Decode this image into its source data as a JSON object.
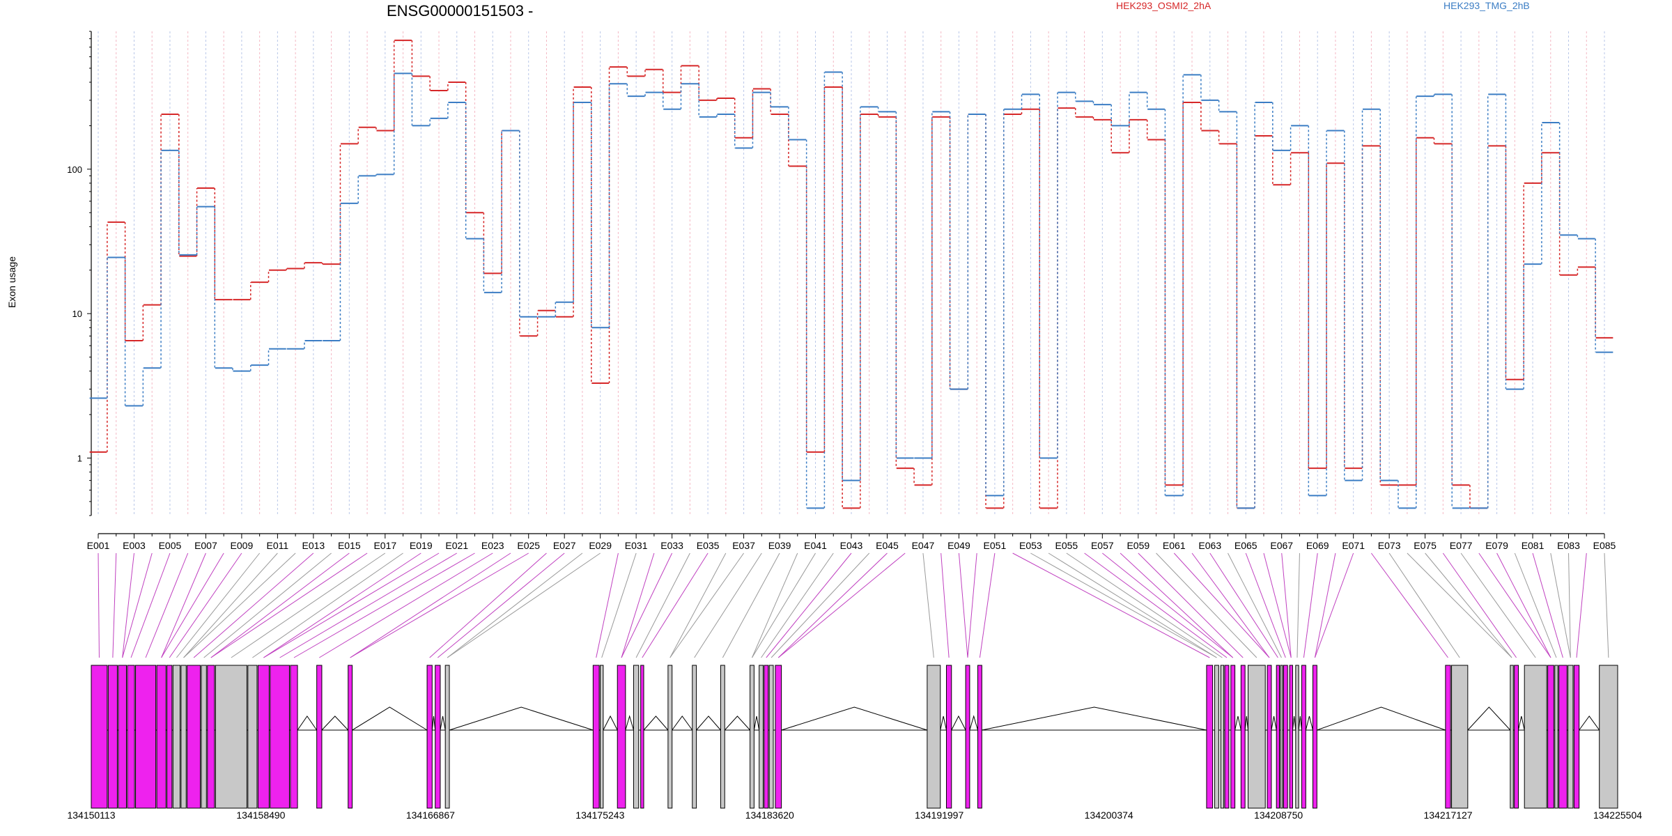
{
  "chart_data": {
    "type": "line",
    "title": "ENSG00000151503 -",
    "ylabel": "Exon usage",
    "xlabel": "",
    "y_scale": "log",
    "ylim": [
      0.4,
      900
    ],
    "y_ticks": [
      1,
      10,
      100
    ],
    "y_tick_labels": [
      "1",
      "10",
      "100"
    ],
    "categories": [
      "E001",
      "E002",
      "E003",
      "E004",
      "E005",
      "E006",
      "E007",
      "E008",
      "E009",
      "E010",
      "E011",
      "E012",
      "E013",
      "E014",
      "E015",
      "E016",
      "E017",
      "E018",
      "E019",
      "E020",
      "E021",
      "E022",
      "E023",
      "E024",
      "E025",
      "E026",
      "E027",
      "E028",
      "E029",
      "E030",
      "E031",
      "E032",
      "E033",
      "E034",
      "E035",
      "E036",
      "E037",
      "E038",
      "E039",
      "E040",
      "E041",
      "E042",
      "E043",
      "E044",
      "E045",
      "E046",
      "E047",
      "E048",
      "E049",
      "E050",
      "E051",
      "E052",
      "E053",
      "E054",
      "E055",
      "E056",
      "E057",
      "E058",
      "E059",
      "E060",
      "E061",
      "E062",
      "E063",
      "E064",
      "E065",
      "E066",
      "E067",
      "E068",
      "E069",
      "E070",
      "E071",
      "E072",
      "E073",
      "E074",
      "E075",
      "E076",
      "E077",
      "E078",
      "E079",
      "E080",
      "E081",
      "E082",
      "E083",
      "E084",
      "E085"
    ],
    "x_tick_labels": [
      "E001",
      "E003",
      "E005",
      "E007",
      "E009",
      "E011",
      "E013",
      "E015",
      "E017",
      "E019",
      "E021",
      "E023",
      "E025",
      "E027",
      "E029",
      "E031",
      "E033",
      "E035",
      "E037",
      "E039",
      "E041",
      "E043",
      "E045",
      "E047",
      "E049",
      "E051",
      "E053",
      "E055",
      "E057",
      "E059",
      "E061",
      "E063",
      "E065",
      "E067",
      "E069",
      "E071",
      "E073",
      "E075",
      "E077",
      "E079",
      "E081",
      "E083",
      "E085"
    ],
    "series": [
      {
        "name": "HEK293_OSMI2_2hA",
        "color": "#d62728",
        "values": [
          1.1,
          43,
          6.5,
          11.5,
          240,
          25,
          74,
          12.5,
          12.5,
          16.5,
          20,
          20.5,
          22.5,
          22,
          150,
          195,
          185,
          780,
          440,
          350,
          400,
          50,
          19,
          185,
          7,
          10.5,
          9.5,
          370,
          3.3,
          510,
          440,
          490,
          340,
          520,
          300,
          310,
          165,
          360,
          240,
          105,
          1.1,
          370,
          0.45,
          240,
          230,
          0.85,
          0.65,
          230,
          3,
          240,
          0.45,
          240,
          260,
          0.45,
          265,
          230,
          220,
          130,
          220,
          160,
          0.65,
          290,
          185,
          150,
          0.45,
          170,
          78,
          130,
          0.85,
          110,
          0.85,
          145,
          0.65,
          0.65,
          165,
          150,
          0.65,
          0.45,
          145,
          3.5,
          80,
          130,
          18.5,
          21,
          6.8
        ]
      },
      {
        "name": "HEK293_TMG_2hB",
        "color": "#3b7dc4",
        "values": [
          2.6,
          24.5,
          2.3,
          4.2,
          135,
          25.5,
          55,
          4.2,
          4.0,
          4.4,
          5.7,
          5.7,
          6.5,
          6.5,
          58,
          90,
          92,
          460,
          200,
          225,
          290,
          33,
          14,
          185,
          9.5,
          9.5,
          12,
          290,
          8,
          390,
          320,
          340,
          260,
          390,
          230,
          240,
          140,
          340,
          270,
          160,
          0.45,
          470,
          0.7,
          270,
          250,
          1.0,
          1.0,
          250,
          3,
          240,
          0.55,
          260,
          330,
          1.0,
          340,
          295,
          280,
          200,
          340,
          260,
          0.55,
          450,
          300,
          250,
          0.45,
          290,
          135,
          200,
          0.55,
          185,
          0.7,
          260,
          0.7,
          0.45,
          320,
          330,
          0.45,
          0.45,
          330,
          3,
          22,
          210,
          35,
          33,
          5.4
        ]
      }
    ]
  },
  "legend": {
    "series_a": "HEK293_OSMI2_2hA",
    "series_b": "HEK293_TMG_2hB",
    "color_a": "#d62728",
    "color_b": "#3b7dc4"
  },
  "gene_model": {
    "coord_labels": [
      "134150113",
      "134158490",
      "134166867",
      "134175243",
      "134183620",
      "134191997",
      "134200374",
      "134208750",
      "134217127",
      "134225504"
    ],
    "coord_range": [
      134150113,
      134225504
    ],
    "exon_color_sig": "#ee22ee",
    "exon_color_nonsig": "#c8c8c8",
    "connector_color_sig": "#c040c0",
    "connector_color_nonsig": "#999999"
  }
}
